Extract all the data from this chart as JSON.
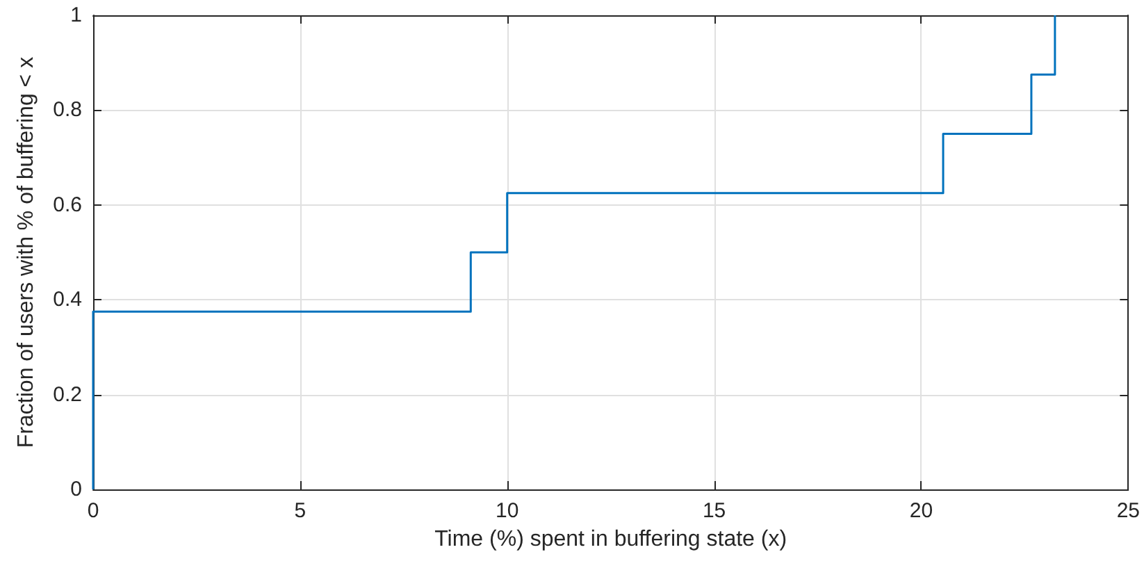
{
  "chart_data": {
    "type": "step",
    "xlabel": "Time (%) spent in buffering state (x)",
    "ylabel": "Fraction of users with % of buffering < x",
    "x": [
      0,
      0,
      9.12,
      10,
      20.53,
      22.66,
      23.23
    ],
    "series": [
      {
        "color": "#0072bd",
        "values": [
          0,
          0.375,
          0.5,
          0.625,
          0.75,
          0.875,
          1
        ]
      }
    ],
    "xlim": [
      0,
      25
    ],
    "xticks": [
      0,
      5,
      10,
      15,
      20,
      25
    ],
    "ylim": [
      0,
      1
    ],
    "yticks": [
      0,
      0.2,
      0.4,
      0.6,
      0.8,
      1
    ],
    "grid": true
  }
}
